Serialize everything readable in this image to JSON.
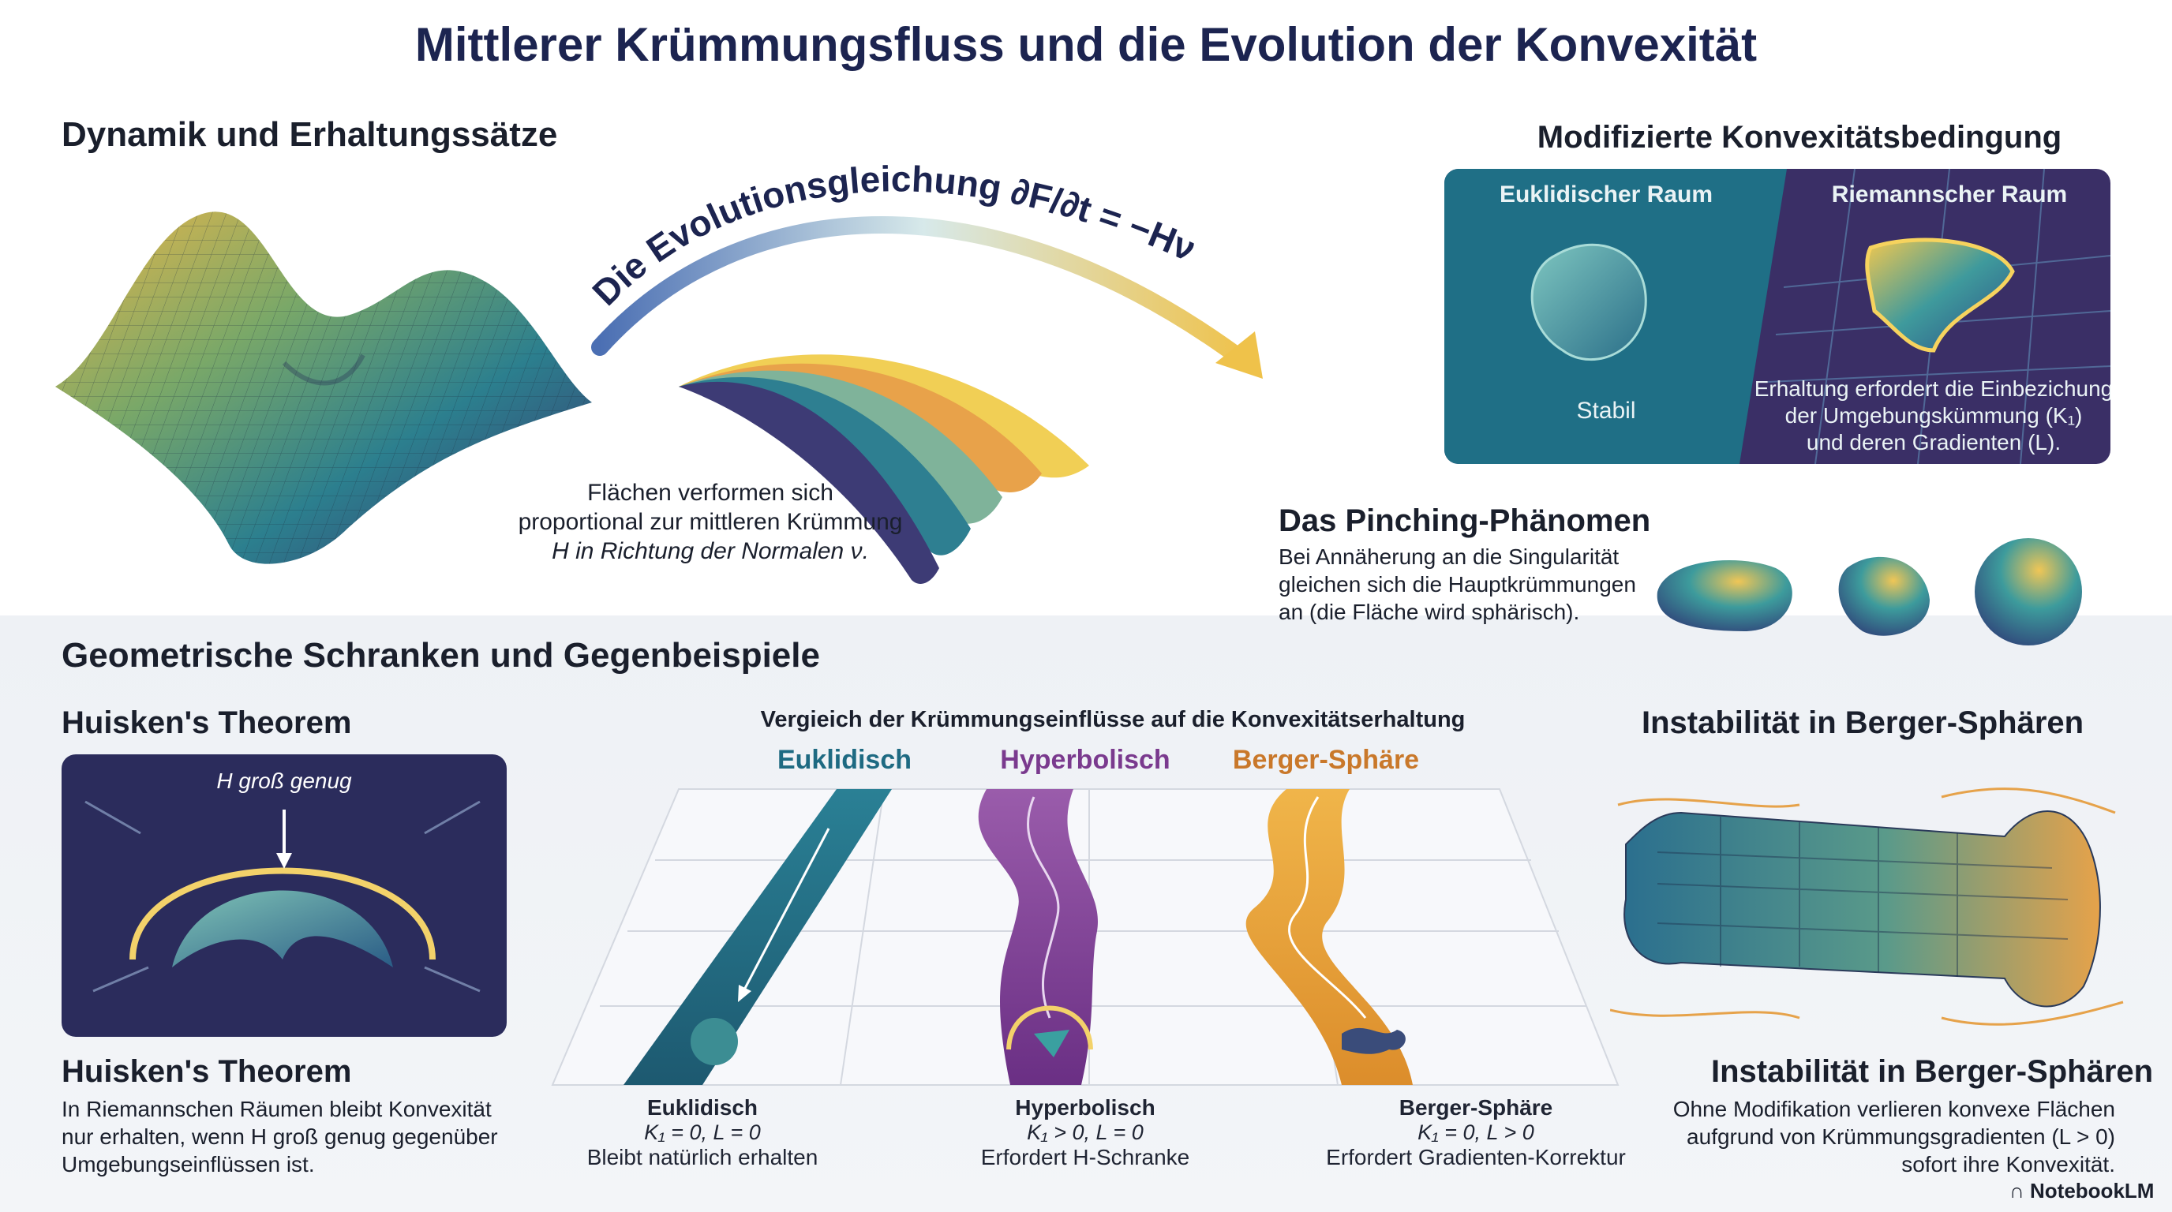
{
  "title": "Mittlerer Krümmungsfluss und die Evolution der Konvexität",
  "dynamics": {
    "heading": "Dynamik und Erhaltungssätze",
    "arc_label": "Die Evolutionsgleichung ∂F/∂t = −Hν",
    "caption": [
      "Flächen verformen sich",
      "proportional zur mittleren Krümmung",
      "H in Richtung der Normalen ν."
    ]
  },
  "convexity": {
    "heading": "Modifizierte Konvexitätsbedingung",
    "euclid_label": "Euklidischer Raum",
    "euclid_state": "Stabil",
    "riemann_label": "Riemannscher Raum",
    "riemann_text": [
      "Erhaltung erfordert die Einbezichung",
      "der Umgebungskümmung (K₁)",
      "und deren Gradienten (L)."
    ]
  },
  "pinching": {
    "heading": "Das Pinching-Phänomen",
    "text": [
      "Bei Annäherung an die Singularität",
      "gleichen sich die Hauptkrümmungen",
      "an (die Fläche wird sphärisch)."
    ]
  },
  "bounds": {
    "heading": "Geometrische Schranken und Gegenbeispiele",
    "huisken_top": "Huisken's Theorem",
    "huisken_box_label": "H groß genug",
    "huisken_bottom": "Huisken's Theorem",
    "huisken_text": [
      "In Riemannschen Räumen bleibt Konvexität",
      "nur erhalten, wenn H groß genug gegenüber",
      "Umgebungseinflüssen ist."
    ]
  },
  "comparison": {
    "heading": "Vergieich der Krümmungseinflüsse auf die Konvexitätserhaltung",
    "columns": [
      {
        "name": "Euklidisch",
        "color": "#1e6a82",
        "title": "Euklidisch",
        "cond": "K₁ = 0, L = 0",
        "desc": "Bleibt natürlich erhalten"
      },
      {
        "name": "Hyperbolisch",
        "color": "#7a3a8e",
        "title": "Hyperbolisch",
        "cond": "K₁ > 0, L = 0",
        "desc": "Erfordert H-Schranke"
      },
      {
        "name": "Berger-Sphäre",
        "color": "#c9782a",
        "title": "Berger-Sphäre",
        "cond": "K₁ = 0, L > 0",
        "desc": "Erfordert Gradienten-Korrektur"
      }
    ]
  },
  "berger": {
    "heading": "Instabilität in Berger-Sphären",
    "heading_bottom": "Instabilität in Berger-Sphären",
    "text": [
      "Ohne Modifikation verlieren konvexe Flächen",
      "aufgrund von Krümmungsgradienten (L > 0)",
      "sofort ihre Konvexität."
    ]
  },
  "brand": "NotebookLM",
  "colors": {
    "navy": "#1c2450",
    "teal": "#1e6a82",
    "purple": "#3b2d63",
    "orange": "#e8a23a",
    "yellow": "#f2d25a"
  }
}
